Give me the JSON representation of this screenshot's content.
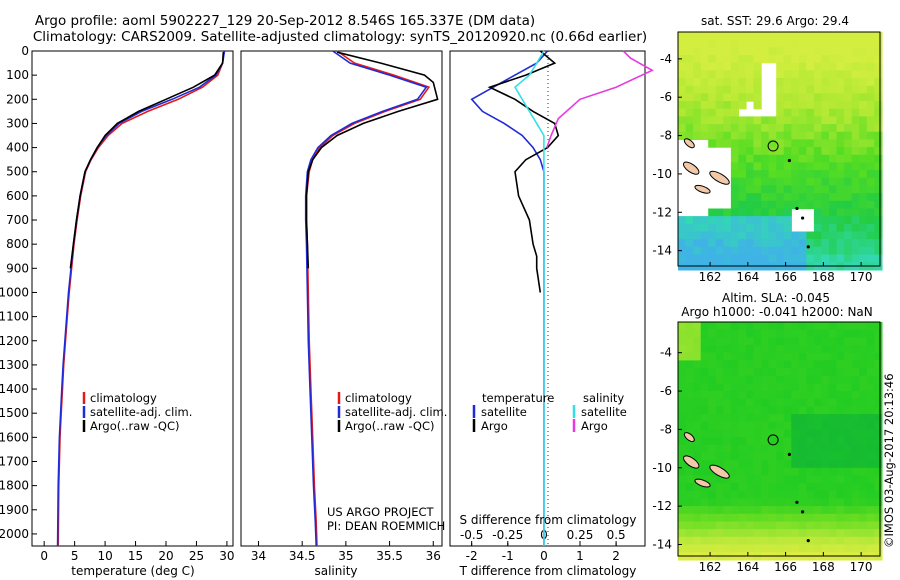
{
  "header": {
    "title_line1": "Argo profile: aoml 5902227_129 20-Sep-2012 8.546S 165.337E (DM data)",
    "title_line2": "Climatology: CARS2009. Satellite-adjusted climatology: synTS_20120920.nc (0.66d earlier)"
  },
  "colors": {
    "climatology": "#e31a1c",
    "satellite_temp": "#1f2bd6",
    "argo": "#000000",
    "satellite_sal": "#33e0e8",
    "argo_sal": "#e83ae0"
  },
  "footer": {
    "project": "US ARGO PROJECT",
    "pi": "PI: DEAN ROEMMICH",
    "stamp": "©IMOS 03-Aug-2017 20:13:46"
  },
  "chart_data": [
    {
      "id": "temperature",
      "type": "line",
      "xlabel": "temperature (deg C)",
      "ylabel": "",
      "xlim": [
        -2,
        31
      ],
      "ylim": [
        2050,
        0
      ],
      "xticks": [
        0,
        5,
        10,
        15,
        20,
        25,
        30
      ],
      "yticks": [
        0,
        100,
        200,
        300,
        400,
        500,
        600,
        700,
        800,
        900,
        1000,
        1100,
        1200,
        1300,
        1400,
        1500,
        1600,
        1700,
        1800,
        1900,
        2000
      ],
      "legend": {
        "placement": "lower-right",
        "entries": [
          "climatology",
          "satellite-adj. clim.",
          "Argo(..raw -QC)"
        ]
      },
      "series": [
        {
          "name": "climatology",
          "color": "#e31a1c",
          "x": [
            29.5,
            29.3,
            28.5,
            26.0,
            22.0,
            17.0,
            12.8,
            10.5,
            8.9,
            7.7,
            6.8,
            6.0,
            5.4,
            4.9,
            4.5,
            4.1,
            3.8,
            3.5,
            3.2,
            3.0,
            2.8,
            2.6,
            2.5,
            2.4,
            2.3
          ],
          "y": [
            0,
            50,
            100,
            150,
            200,
            250,
            300,
            350,
            400,
            450,
            500,
            600,
            700,
            800,
            900,
            1000,
            1100,
            1200,
            1300,
            1400,
            1500,
            1600,
            1700,
            1800,
            2050
          ]
        },
        {
          "name": "satellite-adj. clim.",
          "color": "#1f2bd6",
          "x": [
            29.6,
            29.3,
            28.2,
            25.5,
            21.0,
            16.0,
            12.3,
            10.2,
            8.7,
            7.6,
            6.7,
            5.9,
            5.3,
            4.8,
            4.4,
            4.0,
            3.7,
            3.4,
            3.1,
            2.9,
            2.7,
            2.5,
            2.4,
            2.3,
            2.2
          ],
          "y": [
            0,
            50,
            100,
            150,
            200,
            250,
            300,
            350,
            400,
            450,
            500,
            600,
            700,
            800,
            900,
            1000,
            1100,
            1200,
            1300,
            1400,
            1500,
            1600,
            1700,
            1800,
            2050
          ]
        },
        {
          "name": "Argo(..raw -QC)",
          "color": "#000000",
          "x": [
            29.4,
            29.3,
            28.0,
            24.5,
            20.0,
            15.5,
            12.0,
            10.0,
            8.7,
            7.6,
            6.7,
            5.9,
            5.3,
            4.8,
            4.3
          ],
          "y": [
            5,
            50,
            100,
            150,
            200,
            250,
            300,
            350,
            400,
            450,
            500,
            600,
            700,
            800,
            900
          ]
        }
      ]
    },
    {
      "id": "salinity",
      "type": "line",
      "xlabel": "salinity",
      "ylabel": "",
      "xlim": [
        33.8,
        36.1
      ],
      "ylim": [
        2050,
        0
      ],
      "xticks": [
        34,
        34.5,
        35,
        35.5,
        36
      ],
      "legend": {
        "placement": "lower-right",
        "entries": [
          "climatology",
          "satellite-adj. clim.",
          "Argo(..raw -QC)"
        ]
      },
      "series": [
        {
          "name": "climatology",
          "color": "#e31a1c",
          "x": [
            34.9,
            35.1,
            35.55,
            35.95,
            35.85,
            35.45,
            35.1,
            34.85,
            34.7,
            34.62,
            34.58,
            34.55,
            34.55,
            34.56,
            34.57,
            34.58,
            34.6,
            34.62,
            34.64,
            34.66,
            34.67
          ],
          "y": [
            0,
            50,
            100,
            150,
            200,
            250,
            300,
            350,
            400,
            450,
            500,
            600,
            700,
            800,
            1000,
            1200,
            1400,
            1600,
            1800,
            1950,
            2050
          ]
        },
        {
          "name": "satellite-adj. clim.",
          "color": "#1f2bd6",
          "x": [
            34.85,
            35.05,
            35.5,
            35.92,
            35.82,
            35.42,
            35.07,
            34.83,
            34.68,
            34.6,
            34.56,
            34.54,
            34.54,
            34.55,
            34.56,
            34.57,
            34.59,
            34.61,
            34.63,
            34.65,
            34.66
          ],
          "y": [
            0,
            50,
            100,
            150,
            200,
            250,
            300,
            350,
            400,
            450,
            500,
            600,
            700,
            800,
            1000,
            1200,
            1400,
            1600,
            1800,
            1950,
            2050
          ]
        },
        {
          "name": "Argo(..raw -QC)",
          "color": "#000000",
          "x": [
            34.9,
            35.4,
            35.9,
            36.0,
            36.05,
            35.6,
            35.2,
            34.9,
            34.72,
            34.62,
            34.57,
            34.55,
            34.55,
            34.56,
            34.57
          ],
          "y": [
            5,
            50,
            100,
            130,
            200,
            250,
            300,
            350,
            400,
            450,
            500,
            600,
            700,
            800,
            900
          ]
        }
      ]
    },
    {
      "id": "differences",
      "type": "line",
      "xlabel": "T difference from climatology",
      "xlabel_top": "S difference from climatology",
      "ylabel": "",
      "xlim": [
        -2.6,
        2.8
      ],
      "ylim": [
        2050,
        0
      ],
      "xticks": [
        -2,
        -1,
        0,
        1,
        2
      ],
      "xticks_top": [
        -0.5,
        -0.25,
        0,
        0.25,
        0.5
      ],
      "legend": {
        "placement": "lower-center",
        "temperature_header": "temperature",
        "salinity_header": "salinity",
        "temperature_entries": [
          "satellite",
          "Argo"
        ],
        "salinity_entries": [
          "satellite",
          "Argo"
        ]
      },
      "series": [
        {
          "name": "satellite",
          "group": "temperature",
          "color": "#1f2bd6",
          "x": [
            0.1,
            -0.2,
            -0.8,
            -1.4,
            -2.0,
            -1.7,
            -1.1,
            -0.6,
            -0.3,
            -0.1,
            0,
            0,
            0,
            0,
            0,
            0,
            0,
            0,
            0,
            0
          ],
          "y": [
            0,
            50,
            100,
            150,
            200,
            250,
            300,
            350,
            400,
            450,
            500,
            600,
            700,
            900,
            1100,
            1300,
            1500,
            1700,
            1900,
            2050
          ]
        },
        {
          "name": "Argo",
          "group": "temperature",
          "color": "#000000",
          "x": [
            -0.1,
            0.3,
            -0.5,
            -1.5,
            -0.8,
            -0.3,
            0.3,
            0.4,
            0.1,
            -0.5,
            -0.8,
            -0.7,
            -0.4,
            -0.3,
            -0.2,
            -0.2,
            -0.1
          ],
          "y": [
            0,
            50,
            100,
            150,
            200,
            250,
            300,
            350,
            400,
            450,
            500,
            600,
            700,
            800,
            850,
            900,
            1000
          ]
        },
        {
          "name": "satellite",
          "group": "salinity",
          "color": "#33e0e8",
          "x": [
            0.0,
            -0.05,
            -0.1,
            -0.2,
            -0.15,
            -0.1,
            -0.05,
            0,
            0,
            0,
            0,
            0,
            0,
            0,
            0,
            0,
            0,
            0,
            0,
            0
          ],
          "y": [
            0,
            50,
            100,
            150,
            200,
            250,
            300,
            350,
            400,
            450,
            500,
            600,
            700,
            900,
            1100,
            1300,
            1500,
            1700,
            1900,
            2050
          ]
        },
        {
          "name": "Argo",
          "group": "salinity",
          "color": "#e83ae0",
          "x": [
            0.55,
            0.6,
            0.75,
            0.5,
            0.25,
            0.1,
            0.05,
            0.02
          ],
          "y": [
            0,
            30,
            80,
            150,
            200,
            280,
            350,
            400
          ]
        }
      ]
    },
    {
      "id": "sst_map",
      "type": "heatmap",
      "title": "sat. SST: 29.6 Argo: 29.4",
      "xlim": [
        160.3,
        171.0
      ],
      "ylim": [
        -14.8,
        -2.6
      ],
      "xticks": [
        162,
        164,
        166,
        168,
        170
      ],
      "yticks": [
        -4,
        -6,
        -8,
        -10,
        -12,
        -14
      ],
      "marker": {
        "lon": 165.337,
        "lat": -8.546
      },
      "colormap": [
        "#3fb3e6",
        "#33d9b0",
        "#22cc44",
        "#55dd22",
        "#aee832",
        "#d4ee40"
      ]
    },
    {
      "id": "sla_map",
      "type": "heatmap",
      "title_line1": "Altim. SLA: -0.045",
      "title_line2": "Argo h1000: -0.041 h2000: NaN",
      "xlim": [
        160.3,
        171.0
      ],
      "ylim": [
        -14.6,
        -2.4
      ],
      "xticks": [
        162,
        164,
        166,
        168,
        170
      ],
      "yticks": [
        -4,
        -6,
        -8,
        -10,
        -12,
        -14
      ],
      "marker": {
        "lon": 165.337,
        "lat": -8.546
      },
      "colormap": [
        "#12b636",
        "#22cc22",
        "#66dd22",
        "#b8e83a",
        "#e4ee44"
      ]
    }
  ]
}
